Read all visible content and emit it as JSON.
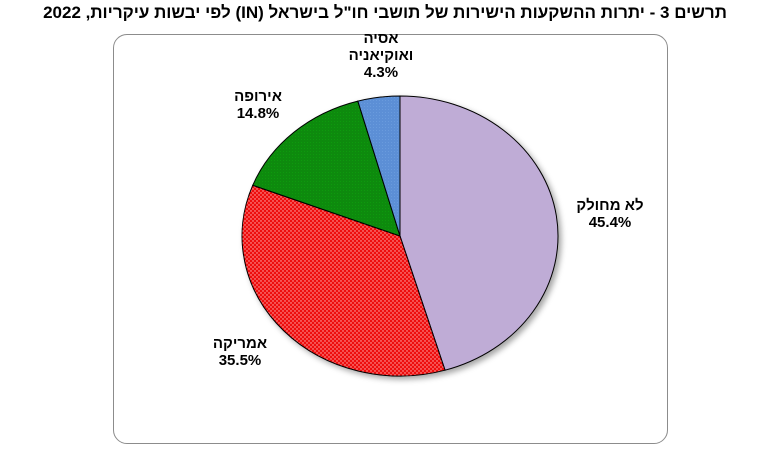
{
  "title": "תרשים 3 - יתרות ההשקעות הישירות של תושבי חו\"ל בישראל (IN) לפי יבשות עיקריות, 2022",
  "chart_data": {
    "type": "pie",
    "title": "תרשים 3 - יתרות ההשקעות הישירות של תושבי חו\"ל בישראל (IN) לפי יבשות עיקריות, 2022",
    "slices": [
      {
        "label": "לא מחולק",
        "label_lines": [
          "לא מחולק"
        ],
        "value": 45.4,
        "value_text": "45.4%",
        "color": "#bfacd6"
      },
      {
        "label": "אמריקה",
        "label_lines": [
          "אמריקה"
        ],
        "value": 35.5,
        "value_text": "35.5%",
        "color": "#ee1111"
      },
      {
        "label": "אירופה",
        "label_lines": [
          "אירופה"
        ],
        "value": 14.8,
        "value_text": "14.8%",
        "color": "#0a8a0a"
      },
      {
        "label": "אסיה ואוקיאניה",
        "label_lines": [
          "אסיה",
          "ואוקיאניה"
        ],
        "value": 4.3,
        "value_text": "4.3%",
        "color": "#5b8fd6"
      }
    ],
    "start_angle": "12 o'clock",
    "direction": "clockwise",
    "legend": "none",
    "labels": "outside slices"
  }
}
